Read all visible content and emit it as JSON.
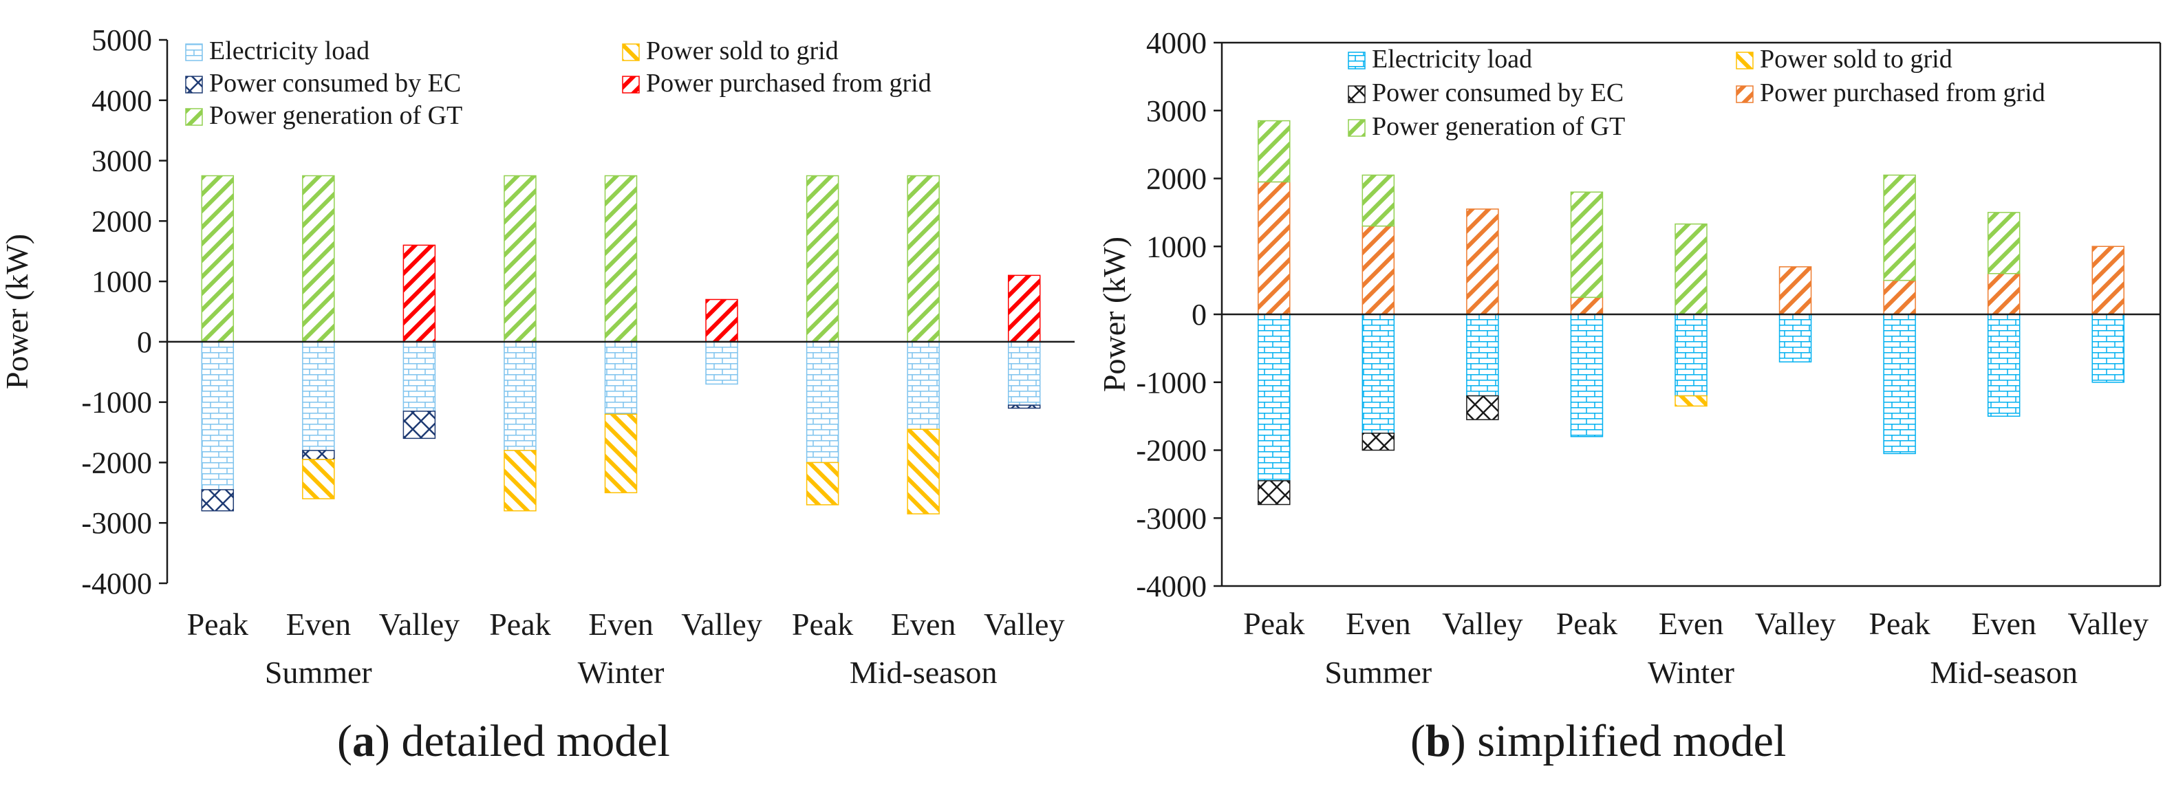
{
  "chart_data": [
    {
      "type": "bar",
      "stacked": true,
      "xlabel": "",
      "ylabel": "Power (kW)",
      "ylim": [
        -4000,
        5000
      ],
      "ytick_step": 1000,
      "grid": false,
      "legend_position": "top",
      "categories": [
        "Peak",
        "Even",
        "Valley",
        "Peak",
        "Even",
        "Valley",
        "Peak",
        "Even",
        "Valley"
      ],
      "groups": [
        {
          "label": "Summer",
          "span": [
            0,
            2
          ]
        },
        {
          "label": "Winter",
          "span": [
            3,
            5
          ]
        },
        {
          "label": "Mid-season",
          "span": [
            6,
            8
          ]
        }
      ],
      "series": [
        {
          "name": "Electricity load",
          "key": "load",
          "pattern": "brick",
          "color": "#7ec3ee",
          "values": [
            -2450,
            -1800,
            -1150,
            -1800,
            -1200,
            -700,
            -2000,
            -1450,
            -1050
          ]
        },
        {
          "name": "Power consumed by EC",
          "key": "ec",
          "pattern": "cross",
          "color": "#1f3b73",
          "values": [
            -350,
            -150,
            -450,
            0,
            0,
            0,
            0,
            0,
            -50
          ]
        },
        {
          "name": "Power sold to grid",
          "key": "sold",
          "pattern": "hatch-left",
          "color": "#ffc000",
          "values": [
            0,
            -650,
            0,
            -1000,
            -1300,
            0,
            -700,
            -1400,
            0
          ]
        },
        {
          "name": "Power purchased from grid",
          "key": "purchased",
          "pattern": "hatch-right",
          "color": "#ff0000",
          "values": [
            0,
            0,
            1600,
            0,
            0,
            700,
            0,
            0,
            1100
          ]
        },
        {
          "name": "Power generation of GT",
          "key": "gt",
          "pattern": "hatch-right",
          "color": "#92d050",
          "values": [
            2750,
            2750,
            0,
            2750,
            2750,
            0,
            2750,
            2750,
            0
          ]
        }
      ]
    },
    {
      "type": "bar",
      "stacked": true,
      "xlabel": "",
      "ylabel": "Power (kW)",
      "ylim": [
        -4000,
        4000
      ],
      "ytick_step": 1000,
      "grid": false,
      "legend_position": "top",
      "categories": [
        "Peak",
        "Even",
        "Valley",
        "Peak",
        "Even",
        "Valley",
        "Peak",
        "Even",
        "Valley"
      ],
      "groups": [
        {
          "label": "Summer",
          "span": [
            0,
            2
          ]
        },
        {
          "label": "Winter",
          "span": [
            3,
            5
          ]
        },
        {
          "label": "Mid-season",
          "span": [
            6,
            8
          ]
        }
      ],
      "series": [
        {
          "name": "Electricity load",
          "key": "load",
          "pattern": "brick",
          "color": "#00b0f0",
          "values": [
            -2450,
            -1750,
            -1200,
            -1800,
            -1200,
            -700,
            -2050,
            -1500,
            -1000
          ]
        },
        {
          "name": "Power consumed by EC",
          "key": "ec",
          "pattern": "cross",
          "color": "#1a1a1a",
          "values": [
            -350,
            -250,
            -350,
            0,
            0,
            0,
            0,
            0,
            0
          ]
        },
        {
          "name": "Power sold to grid",
          "key": "sold",
          "pattern": "hatch-left",
          "color": "#ffc000",
          "values": [
            0,
            0,
            0,
            0,
            -150,
            0,
            0,
            0,
            0
          ]
        },
        {
          "name": "Power purchased from grid",
          "key": "purchased",
          "pattern": "hatch-right",
          "color": "#ed7d31",
          "values": [
            1950,
            1300,
            1550,
            250,
            0,
            700,
            500,
            600,
            1000
          ]
        },
        {
          "name": "Power generation of GT",
          "key": "gt",
          "pattern": "hatch-right",
          "color": "#92d050",
          "values": [
            900,
            750,
            0,
            1550,
            1330,
            0,
            1550,
            900,
            0
          ]
        }
      ]
    }
  ],
  "captions": {
    "a": {
      "letter": "a",
      "text": "detailed model"
    },
    "b": {
      "letter": "b",
      "text": "simplified model"
    }
  }
}
